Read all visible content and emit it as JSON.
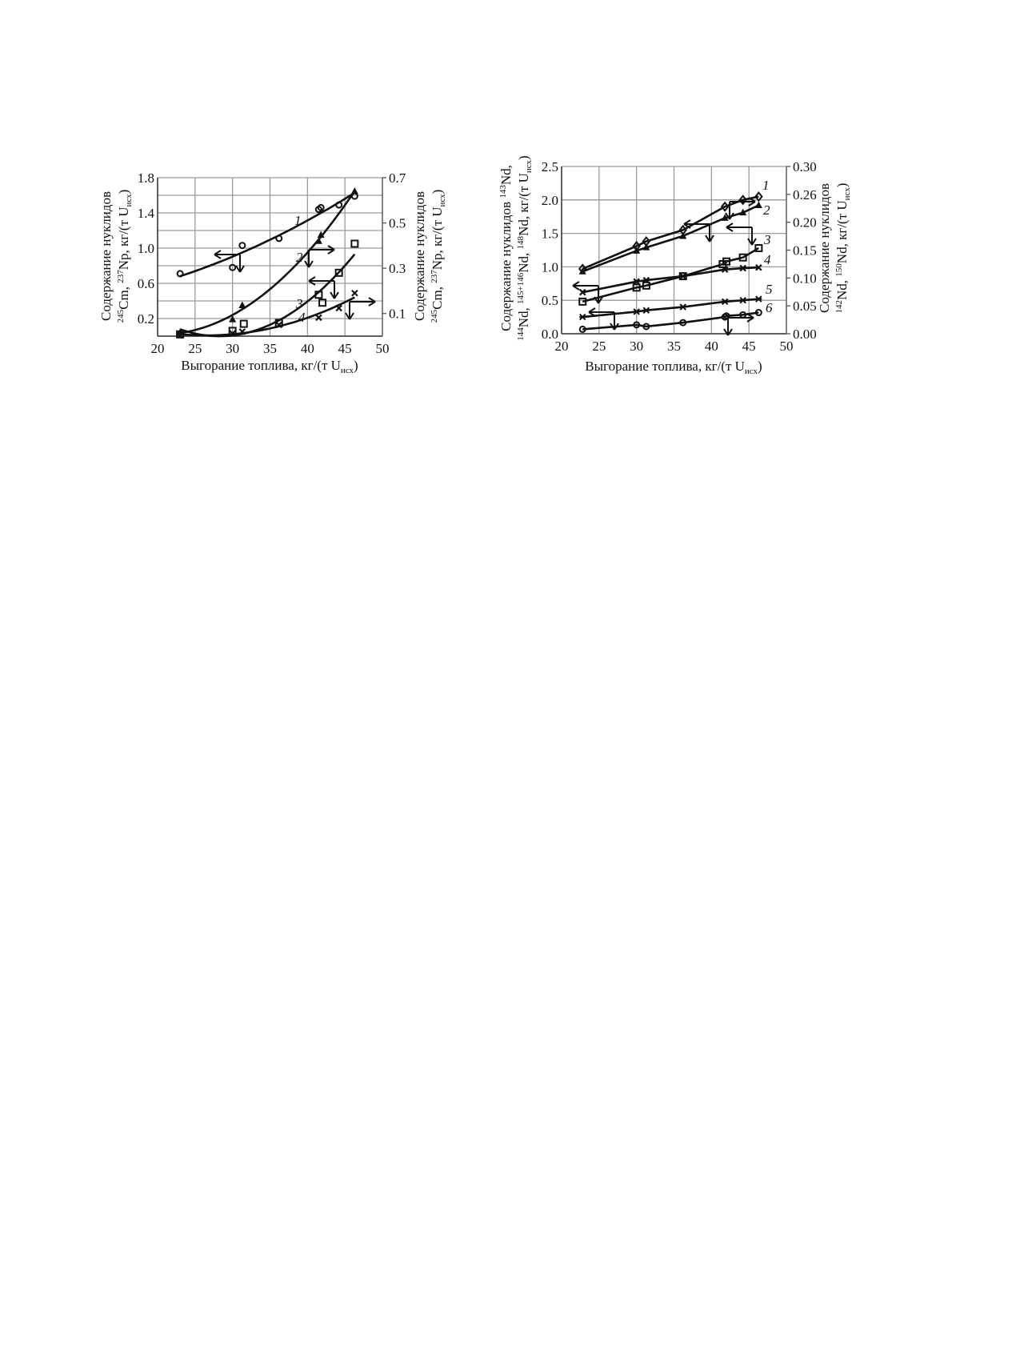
{
  "chart_data": [
    {
      "type": "scatter",
      "xlabel": {
        "main": "Выгорание топлива, кг/(т U",
        "sub": "исх",
        "end": ")"
      },
      "ylabel_left": {
        "line1": "Содержание нуклидов",
        "sup1": "245",
        "t1": "Cm, ",
        "sup2": "237",
        "t2": "Np, кг/(т U",
        "sub": "исх",
        "end": ")"
      },
      "ylabel_right": {
        "line1": "Содержание нуклидов",
        "sup1": "245",
        "t1": "Cm, ",
        "sup2": "237",
        "t2": "Np, кг/(т U",
        "sub": "исх",
        "end": ")"
      },
      "xlim": [
        20,
        50
      ],
      "ylim_left": [
        0,
        1.8
      ],
      "ylim_right": [
        0,
        0.7
      ],
      "x_ticks": [
        "20",
        "25",
        "30",
        "35",
        "40",
        "45",
        "50"
      ],
      "y_ticks_left": [
        "0.2",
        "0.6",
        "1.0",
        "1.4",
        "1.8"
      ],
      "y_ticks_right": [
        "0.1",
        "0.3",
        "0.5",
        "0.7"
      ],
      "grid": true,
      "fit": "smooth curve",
      "series": [
        {
          "label": "1",
          "marker": "circle",
          "axis": "left",
          "points": [
            [
              23,
              0.71
            ],
            [
              30,
              0.78
            ],
            [
              31.3,
              1.03
            ],
            [
              36.2,
              1.11
            ],
            [
              41.5,
              1.44
            ],
            [
              41.8,
              1.46
            ],
            [
              44.2,
              1.49
            ],
            [
              46.3,
              1.59
            ]
          ]
        },
        {
          "label": "2",
          "marker": "triangle",
          "axis": "right",
          "points": [
            [
              23,
              0.016
            ],
            [
              30,
              0.074
            ],
            [
              31.3,
              0.136
            ],
            [
              41.5,
              0.42
            ],
            [
              41.8,
              0.447
            ],
            [
              46.3,
              0.64
            ]
          ]
        },
        {
          "label": "3",
          "marker": "square",
          "axis": "left",
          "points": [
            [
              23,
              0.02
            ],
            [
              30,
              0.06
            ],
            [
              31.5,
              0.14
            ],
            [
              36.2,
              0.15
            ],
            [
              41.5,
              0.47
            ],
            [
              42,
              0.38
            ],
            [
              44.2,
              0.72
            ],
            [
              46.3,
              1.05
            ]
          ]
        },
        {
          "label": "4",
          "marker": "cross",
          "axis": "right",
          "points": [
            [
              23,
              0.004
            ],
            [
              30,
              0.012
            ],
            [
              31.3,
              0.02
            ],
            [
              36.2,
              0.05
            ],
            [
              41.5,
              0.082
            ],
            [
              44.2,
              0.124
            ],
            [
              46.3,
              0.19
            ]
          ]
        }
      ]
    },
    {
      "type": "line",
      "xlabel": {
        "main": "Выгорание топлива, кг/(т U",
        "sub": "исх",
        "end": ")"
      },
      "ylabel_left": {
        "line1a": "Содержание нуклидов ",
        "sup0": "143",
        "line1b": "Nd,",
        "sup1": "144",
        "t1": "Nd, ",
        "sup2": "145+146",
        "t2": "Nd, ",
        "sup3": "148",
        "t3": "Nd, кг/(т U",
        "sub": "исх",
        "end": ")"
      },
      "ylabel_right": {
        "line1": "Содержание нуклидов",
        "sup1": "142",
        "t1": "Nd, ",
        "sup2": "150",
        "t2": "Nd, кг/(т U",
        "sub": "исх",
        "end": ")"
      },
      "xlim": [
        20,
        50
      ],
      "ylim_left": [
        0,
        2.5
      ],
      "ylim_right": [
        0,
        0.3
      ],
      "x_ticks": [
        "20",
        "25",
        "30",
        "35",
        "40",
        "45",
        "50"
      ],
      "y_ticks_left": [
        "0.0",
        "0.5",
        "1.0",
        "1.5",
        "2.0",
        "2.5"
      ],
      "y_ticks_right": [
        "0.00",
        "0.05",
        "0.10",
        "0.15",
        "0.20",
        "0.26",
        "0.30"
      ],
      "grid": true,
      "series": [
        {
          "label": "1",
          "marker": "diamond",
          "axis": "left",
          "points": [
            [
              22.8,
              0.97
            ],
            [
              30,
              1.31
            ],
            [
              31.3,
              1.38
            ],
            [
              36.2,
              1.55
            ],
            [
              41.8,
              1.9
            ],
            [
              44.2,
              2.0
            ],
            [
              46.3,
              2.05
            ]
          ]
        },
        {
          "label": "2",
          "marker": "triangle",
          "axis": "left",
          "points": [
            [
              22.8,
              0.93
            ],
            [
              30,
              1.24
            ],
            [
              31.3,
              1.29
            ],
            [
              36.2,
              1.46
            ],
            [
              41.8,
              1.73
            ],
            [
              44.2,
              1.81
            ],
            [
              46.3,
              1.92
            ]
          ]
        },
        {
          "label": "3",
          "marker": "square",
          "axis": "left",
          "points": [
            [
              22.8,
              0.48
            ],
            [
              30,
              0.69
            ],
            [
              31.3,
              0.72
            ],
            [
              36.2,
              0.86
            ],
            [
              41.5,
              1.04
            ],
            [
              42,
              1.08
            ],
            [
              44.2,
              1.14
            ],
            [
              46.3,
              1.28
            ]
          ]
        },
        {
          "label": "4",
          "marker": "cross",
          "axis": "left",
          "points": [
            [
              22.8,
              0.62
            ],
            [
              30,
              0.78
            ],
            [
              31.3,
              0.8
            ],
            [
              36.2,
              0.86
            ],
            [
              41.8,
              0.96
            ],
            [
              44.2,
              0.98
            ],
            [
              46.3,
              0.99
            ]
          ]
        },
        {
          "label": "5",
          "marker": "asterisk",
          "axis": "left",
          "points": [
            [
              22.8,
              0.25
            ],
            [
              30,
              0.33
            ],
            [
              31.3,
              0.35
            ],
            [
              36.2,
              0.4
            ],
            [
              41.8,
              0.48
            ],
            [
              44.2,
              0.5
            ],
            [
              46.3,
              0.52
            ]
          ]
        },
        {
          "label": "6",
          "marker": "circle",
          "axis": "right",
          "points": [
            [
              22.8,
              0.008
            ],
            [
              30,
              0.016
            ],
            [
              31.3,
              0.013
            ],
            [
              36.2,
              0.02
            ],
            [
              41.8,
              0.03
            ],
            [
              42,
              0.032
            ],
            [
              44.2,
              0.034
            ],
            [
              46.3,
              0.038
            ]
          ]
        }
      ]
    }
  ]
}
